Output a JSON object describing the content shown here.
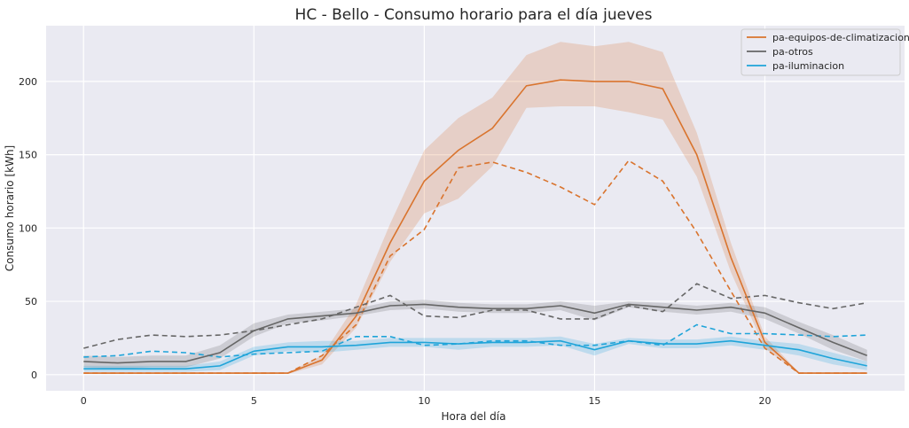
{
  "chart_data": {
    "type": "line",
    "title": "HC - Bello - Consumo horario para el día jueves",
    "xlabel": "Hora del día",
    "ylabel": "Consumo horario [kWh]",
    "xlim": [
      -1.1,
      24.1
    ],
    "ylim": [
      -11,
      238
    ],
    "xticks": [
      0,
      5,
      10,
      15,
      20
    ],
    "yticks": [
      0,
      50,
      100,
      150,
      200
    ],
    "grid": true,
    "legend_position": "top-right",
    "x": [
      0,
      1,
      2,
      3,
      4,
      5,
      6,
      7,
      8,
      9,
      10,
      11,
      12,
      13,
      14,
      15,
      16,
      17,
      18,
      19,
      20,
      21,
      22,
      23
    ],
    "series": [
      {
        "name": "pa-equipos-de-climatizacion",
        "color": "#d9742e",
        "mean": [
          1,
          1,
          1,
          1,
          1,
          1,
          1,
          10,
          40,
          90,
          132,
          153,
          168,
          197,
          201,
          200,
          200,
          195,
          150,
          80,
          22,
          1,
          1,
          1
        ],
        "lower": [
          0.5,
          0.5,
          0.5,
          0.5,
          0.5,
          0.5,
          0.5,
          7,
          32,
          77,
          110,
          120,
          142,
          182,
          183,
          183,
          179,
          174,
          135,
          70,
          18,
          0.5,
          0.5,
          0.5
        ],
        "upper": [
          1.5,
          1.5,
          1.5,
          1.5,
          1.5,
          1.5,
          1.5,
          13,
          48,
          103,
          153,
          175,
          189,
          218,
          227,
          224,
          227,
          220,
          165,
          90,
          26,
          1.5,
          1.5,
          1.5
        ],
        "reference": [
          1,
          1,
          1,
          1,
          1,
          1,
          1,
          13,
          34,
          81,
          99,
          141,
          145,
          138,
          128,
          116,
          146,
          132,
          97,
          57,
          18,
          1,
          1,
          1
        ]
      },
      {
        "name": "pa-otros",
        "color": "#666666",
        "mean": [
          9,
          8,
          9,
          9,
          15,
          30,
          38,
          40,
          42,
          47,
          48,
          46,
          45,
          45,
          47,
          42,
          48,
          46,
          44,
          46,
          42,
          32,
          22,
          13
        ],
        "lower": [
          5,
          4,
          5,
          5,
          11,
          26,
          35,
          37,
          40,
          44,
          45,
          43,
          42,
          42,
          44,
          37,
          46,
          43,
          41,
          43,
          38,
          28,
          17,
          9
        ],
        "upper": [
          13,
          12,
          13,
          13,
          20,
          35,
          41,
          43,
          45,
          50,
          51,
          49,
          48,
          48,
          50,
          47,
          50,
          49,
          47,
          49,
          46,
          36,
          27,
          17
        ],
        "reference": [
          18,
          24,
          27,
          26,
          27,
          30,
          34,
          38,
          46,
          54,
          40,
          39,
          44,
          44,
          38,
          38,
          47,
          43,
          62,
          52,
          54,
          49,
          45,
          49
        ]
      },
      {
        "name": "pa-iluminacion",
        "color": "#1fa4d9",
        "mean": [
          4,
          4,
          4,
          4,
          6,
          16,
          19,
          19,
          20,
          22,
          22,
          21,
          22,
          22,
          23,
          17,
          23,
          21,
          21,
          23,
          20,
          17,
          11,
          6
        ],
        "lower": [
          2,
          2,
          2,
          2,
          3,
          13,
          16,
          15,
          17,
          19,
          19,
          17,
          19,
          19,
          20,
          13,
          21,
          18,
          18,
          20,
          17,
          13,
          7,
          3
        ],
        "upper": [
          6,
          6,
          6,
          6,
          9,
          19,
          22,
          23,
          23,
          25,
          25,
          25,
          25,
          25,
          26,
          21,
          25,
          24,
          24,
          26,
          23,
          21,
          15,
          9
        ],
        "reference": [
          12,
          13,
          16,
          15,
          12,
          14,
          15,
          16,
          26,
          26,
          20,
          21,
          23,
          23,
          20,
          20,
          23,
          20,
          34,
          28,
          28,
          27,
          26,
          27
        ]
      }
    ]
  }
}
